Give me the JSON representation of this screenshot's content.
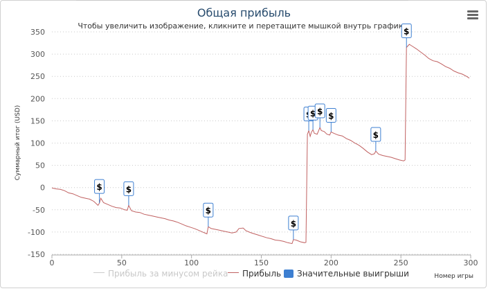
{
  "chart_data": {
    "type": "line",
    "title": "Общая прибыль",
    "subtitle": "Чтобы увеличить изображение, кликните и перетащите мышкой внутрь графика.",
    "xlabel": "Номер игры",
    "ylabel": "Суммарный итог (USD)",
    "xlim": [
      0,
      300
    ],
    "ylim": [
      -150,
      350
    ],
    "x_ticks": [
      "0",
      "50",
      "100",
      "150",
      "200",
      "250",
      "300"
    ],
    "y_ticks": [
      "-150",
      "-100",
      "-50",
      "0",
      "50",
      "100",
      "150",
      "200",
      "250",
      "300",
      "350"
    ],
    "grid": "horizontal dotted",
    "legend_position": "bottom",
    "series": [
      {
        "name": "Прибыль за минусом рейка",
        "visible": false,
        "color": "#cccccc",
        "points": []
      },
      {
        "name": "Прибыль",
        "visible": true,
        "color": "#c06060",
        "points": [
          [
            0,
            -1
          ],
          [
            3,
            -3
          ],
          [
            6,
            -4
          ],
          [
            9,
            -7
          ],
          [
            12,
            -12
          ],
          [
            15,
            -14
          ],
          [
            18,
            -18
          ],
          [
            21,
            -22
          ],
          [
            24,
            -24
          ],
          [
            27,
            -26
          ],
          [
            30,
            -31
          ],
          [
            33,
            -40
          ],
          [
            34,
            -35
          ],
          [
            35,
            -24
          ],
          [
            37,
            -34
          ],
          [
            40,
            -38
          ],
          [
            43,
            -42
          ],
          [
            46,
            -45
          ],
          [
            49,
            -46
          ],
          [
            52,
            -50
          ],
          [
            54,
            -51
          ],
          [
            55,
            -40
          ],
          [
            57,
            -52
          ],
          [
            60,
            -55
          ],
          [
            63,
            -56
          ],
          [
            66,
            -60
          ],
          [
            69,
            -62
          ],
          [
            72,
            -64
          ],
          [
            75,
            -66
          ],
          [
            78,
            -68
          ],
          [
            81,
            -70
          ],
          [
            84,
            -73
          ],
          [
            87,
            -75
          ],
          [
            90,
            -78
          ],
          [
            93,
            -82
          ],
          [
            96,
            -86
          ],
          [
            99,
            -89
          ],
          [
            102,
            -92
          ],
          [
            105,
            -96
          ],
          [
            108,
            -100
          ],
          [
            111,
            -104
          ],
          [
            112,
            -88
          ],
          [
            114,
            -92
          ],
          [
            117,
            -94
          ],
          [
            120,
            -96
          ],
          [
            123,
            -98
          ],
          [
            126,
            -100
          ],
          [
            129,
            -102
          ],
          [
            132,
            -100
          ],
          [
            134,
            -92
          ],
          [
            137,
            -91
          ],
          [
            139,
            -97
          ],
          [
            142,
            -101
          ],
          [
            145,
            -104
          ],
          [
            148,
            -107
          ],
          [
            151,
            -110
          ],
          [
            154,
            -113
          ],
          [
            157,
            -115
          ],
          [
            160,
            -118
          ],
          [
            163,
            -119
          ],
          [
            166,
            -121
          ],
          [
            169,
            -124
          ],
          [
            172,
            -126
          ],
          [
            173,
            -117
          ],
          [
            175,
            -118
          ],
          [
            178,
            -122
          ],
          [
            181,
            -124
          ],
          [
            182,
            -123
          ],
          [
            183,
            120
          ],
          [
            184,
            128
          ],
          [
            185,
            115
          ],
          [
            186,
            125
          ],
          [
            187,
            130
          ],
          [
            188,
            122
          ],
          [
            190,
            120
          ],
          [
            192,
            135
          ],
          [
            193,
            128
          ],
          [
            195,
            126
          ],
          [
            197,
            120
          ],
          [
            199,
            118
          ],
          [
            200,
            125
          ],
          [
            202,
            122
          ],
          [
            205,
            118
          ],
          [
            208,
            116
          ],
          [
            211,
            110
          ],
          [
            214,
            106
          ],
          [
            217,
            100
          ],
          [
            220,
            95
          ],
          [
            223,
            88
          ],
          [
            226,
            80
          ],
          [
            229,
            74
          ],
          [
            231,
            76
          ],
          [
            232,
            82
          ],
          [
            234,
            75
          ],
          [
            237,
            72
          ],
          [
            240,
            70
          ],
          [
            243,
            68
          ],
          [
            246,
            65
          ],
          [
            249,
            62
          ],
          [
            252,
            60
          ],
          [
            253,
            62
          ],
          [
            254,
            315
          ],
          [
            256,
            322
          ],
          [
            258,
            318
          ],
          [
            261,
            312
          ],
          [
            264,
            305
          ],
          [
            267,
            298
          ],
          [
            270,
            290
          ],
          [
            273,
            285
          ],
          [
            276,
            283
          ],
          [
            279,
            278
          ],
          [
            282,
            272
          ],
          [
            285,
            268
          ],
          [
            288,
            262
          ],
          [
            291,
            258
          ],
          [
            294,
            255
          ],
          [
            297,
            250
          ],
          [
            299,
            246
          ]
        ]
      }
    ],
    "markers": {
      "name": "Значительные выигрыши",
      "color": "#3d7fd1",
      "label": "$",
      "points": [
        [
          34,
          -35
        ],
        [
          55,
          -40
        ],
        [
          112,
          -88
        ],
        [
          173,
          -117
        ],
        [
          184,
          128
        ],
        [
          187,
          130
        ],
        [
          192,
          135
        ],
        [
          200,
          125
        ],
        [
          232,
          82
        ],
        [
          254,
          315
        ]
      ]
    }
  }
}
